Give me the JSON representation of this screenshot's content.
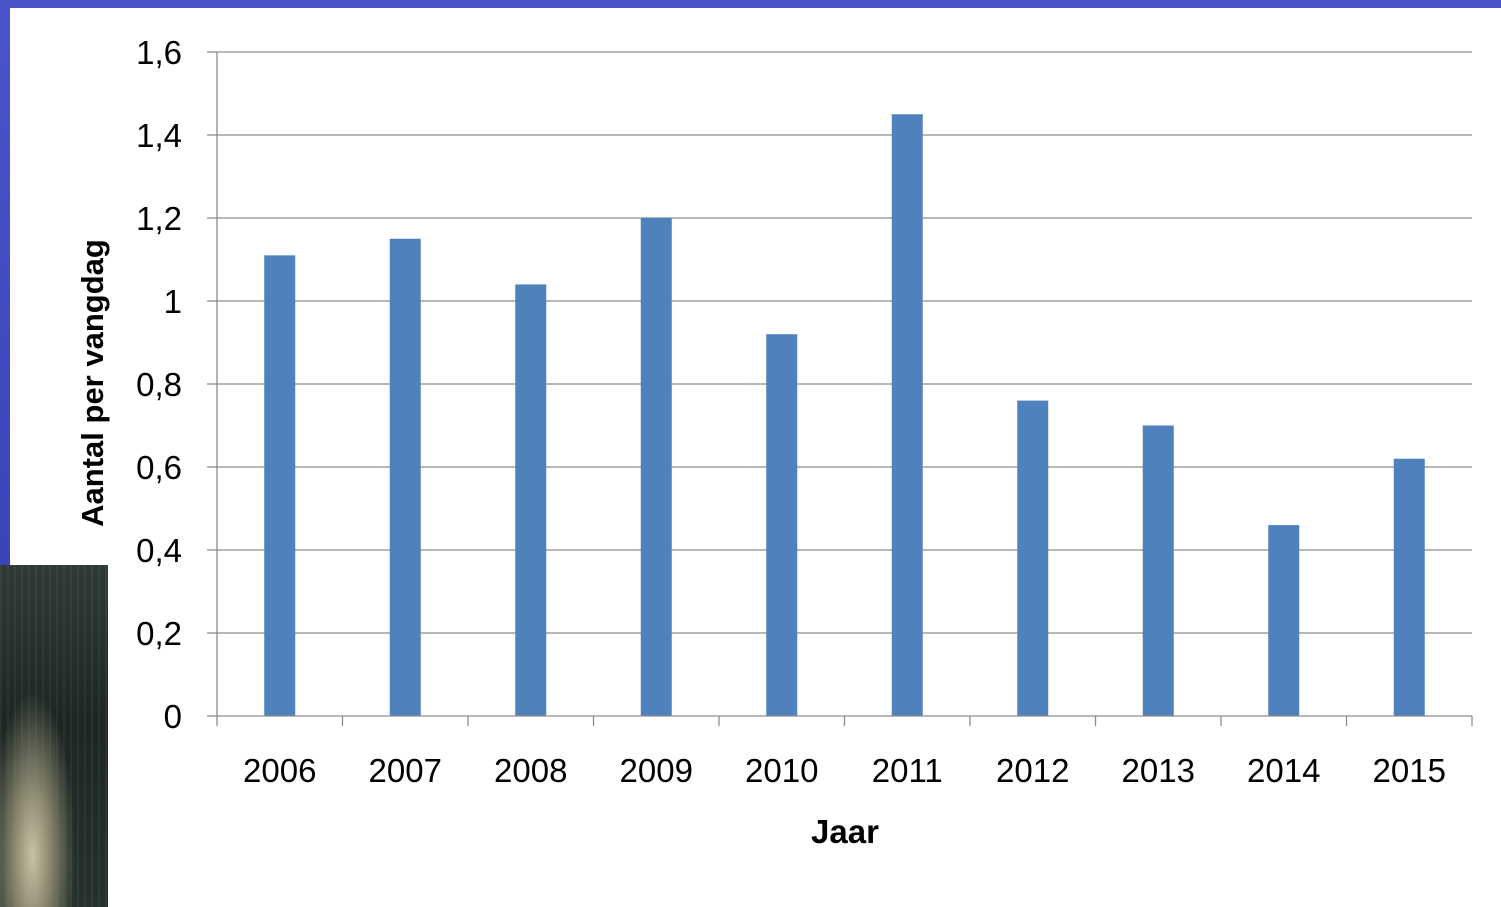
{
  "chart_data": {
    "type": "bar",
    "categories": [
      "2006",
      "2007",
      "2008",
      "2009",
      "2010",
      "2011",
      "2012",
      "2013",
      "2014",
      "2015"
    ],
    "values": [
      1.11,
      1.15,
      1.04,
      1.2,
      0.92,
      1.45,
      0.76,
      0.7,
      0.46,
      0.62
    ],
    "xlabel": "Jaar",
    "ylabel": "Aantal per vangdag",
    "ylim": [
      0,
      1.6
    ],
    "yticks": [
      0,
      0.2,
      0.4,
      0.6,
      0.8,
      1.0,
      1.2,
      1.4,
      1.6
    ],
    "ytick_labels": [
      "0",
      "0,2",
      "0,4",
      "0,6",
      "0,8",
      "1",
      "1,2",
      "1,4",
      "1,6"
    ],
    "grid": true,
    "legend": "none",
    "bar_color": "#4f81bd",
    "grid_color": "#8c8c8c",
    "axis_color": "#8c8c8c"
  }
}
